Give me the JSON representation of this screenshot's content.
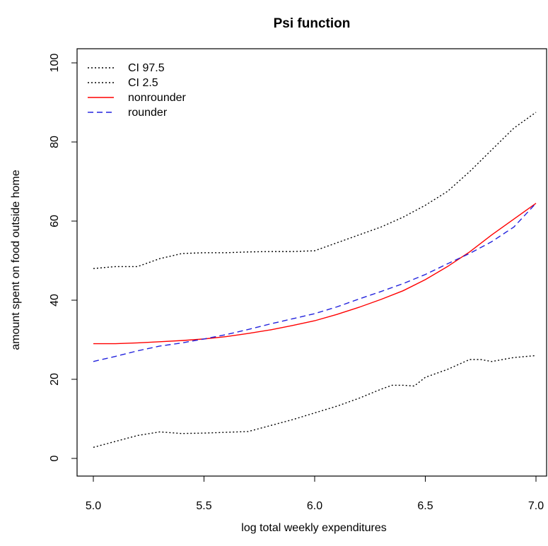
{
  "chart_data": {
    "type": "line",
    "title": "Psi function",
    "xlabel": "log total weekly expenditures",
    "ylabel": "amount spent on food outside home",
    "xlim": [
      5.0,
      7.0
    ],
    "ylim": [
      0,
      100
    ],
    "x_ticks": [
      "5.0",
      "5.5",
      "6.0",
      "6.5",
      "7.0"
    ],
    "y_ticks": [
      "0",
      "20",
      "40",
      "60",
      "80",
      "100"
    ],
    "grid": false,
    "legend_position": "top-left",
    "series": [
      {
        "name": "CI 97.5",
        "color": "#000000",
        "style": "dotted",
        "x": [
          5.0,
          5.1,
          5.2,
          5.3,
          5.4,
          5.5,
          5.6,
          5.7,
          5.8,
          5.9,
          6.0,
          6.1,
          6.2,
          6.3,
          6.4,
          6.5,
          6.6,
          6.7,
          6.8,
          6.9,
          6.95,
          7.0
        ],
        "y": [
          48,
          48.5,
          48.5,
          50.5,
          51.8,
          52,
          52,
          52.2,
          52.3,
          52.3,
          52.5,
          54.5,
          56.5,
          58.5,
          61,
          64,
          67.5,
          72.5,
          78,
          83.5,
          85.5,
          87.5
        ]
      },
      {
        "name": "CI 2.5",
        "color": "#000000",
        "style": "dotted",
        "x": [
          5.0,
          5.1,
          5.2,
          5.3,
          5.4,
          5.5,
          5.6,
          5.7,
          5.8,
          5.9,
          6.0,
          6.1,
          6.2,
          6.3,
          6.35,
          6.4,
          6.45,
          6.5,
          6.6,
          6.7,
          6.75,
          6.8,
          6.9,
          7.0
        ],
        "y": [
          2.8,
          4.3,
          5.8,
          6.7,
          6.3,
          6.4,
          6.6,
          6.8,
          8.3,
          9.8,
          11.5,
          13.2,
          15.2,
          17.5,
          18.5,
          18.5,
          18.3,
          20.5,
          22.5,
          25,
          25,
          24.5,
          25.5,
          26
        ]
      },
      {
        "name": "nonrounder",
        "color": "#ff0000",
        "style": "solid",
        "x": [
          5.0,
          5.1,
          5.2,
          5.3,
          5.4,
          5.5,
          5.6,
          5.7,
          5.8,
          5.9,
          6.0,
          6.1,
          6.2,
          6.3,
          6.4,
          6.5,
          6.6,
          6.7,
          6.8,
          6.9,
          7.0
        ],
        "y": [
          29,
          29,
          29.2,
          29.5,
          29.8,
          30.2,
          30.8,
          31.6,
          32.5,
          33.6,
          34.8,
          36.4,
          38.2,
          40.2,
          42.4,
          45.2,
          48.5,
          52.2,
          56.5,
          60.5,
          64.5
        ]
      },
      {
        "name": "rounder",
        "color": "#2222dd",
        "style": "dashed",
        "x": [
          5.0,
          5.1,
          5.2,
          5.3,
          5.4,
          5.5,
          5.6,
          5.7,
          5.8,
          5.9,
          6.0,
          6.1,
          6.2,
          6.3,
          6.4,
          6.5,
          6.6,
          6.7,
          6.8,
          6.9,
          7.0
        ],
        "y": [
          24.5,
          25.8,
          27.2,
          28.4,
          29.2,
          30.2,
          31.3,
          32.6,
          34,
          35.3,
          36.6,
          38.3,
          40.3,
          42.2,
          44.2,
          46.5,
          49.2,
          51.8,
          54.8,
          58.5,
          64.5
        ]
      }
    ]
  }
}
